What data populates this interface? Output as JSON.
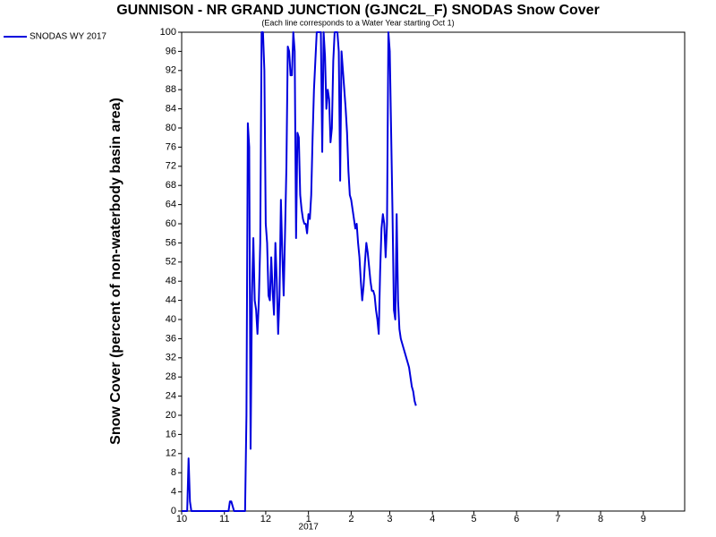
{
  "chart_data": {
    "type": "line",
    "title": "GUNNISON - NR GRAND JUNCTION (GJNC2L_F) SNODAS Snow Cover",
    "subtitle": "(Each line corresponds to a Water Year starting Oct 1)",
    "y_label": "Snow Cover (percent of non-waterbody basin area)",
    "x_sublabel": "2017",
    "xlim": [
      0,
      365
    ],
    "xticks": [
      {
        "value": 0,
        "label": "10"
      },
      {
        "value": 31,
        "label": "11"
      },
      {
        "value": 61,
        "label": "12"
      },
      {
        "value": 92,
        "label": "1"
      },
      {
        "value": 123,
        "label": "2"
      },
      {
        "value": 151,
        "label": "3"
      },
      {
        "value": 182,
        "label": "4"
      },
      {
        "value": 212,
        "label": "5"
      },
      {
        "value": 243,
        "label": "6"
      },
      {
        "value": 273,
        "label": "7"
      },
      {
        "value": 304,
        "label": "8"
      },
      {
        "value": 335,
        "label": "9"
      }
    ],
    "ylim": [
      0,
      100
    ],
    "yticks": [
      0,
      4,
      8,
      12,
      16,
      20,
      24,
      28,
      32,
      36,
      40,
      44,
      48,
      52,
      56,
      60,
      64,
      68,
      72,
      76,
      80,
      84,
      88,
      92,
      96,
      100
    ],
    "grid": false,
    "legend": "top-left",
    "x": [
      0,
      4,
      5,
      6,
      7,
      34,
      35,
      36,
      37,
      38,
      46,
      47,
      48,
      49,
      50,
      51,
      52,
      53,
      54,
      55,
      56,
      57,
      58,
      59,
      60,
      61,
      62,
      63,
      64,
      65,
      66,
      67,
      68,
      69,
      70,
      71,
      72,
      73,
      74,
      75,
      76,
      77,
      78,
      79,
      80,
      81,
      82,
      83,
      84,
      85,
      86,
      87,
      88,
      89,
      90,
      91,
      92,
      93,
      94,
      95,
      96,
      97,
      98,
      99,
      100,
      101,
      102,
      103,
      104,
      105,
      106,
      107,
      108,
      109,
      110,
      111,
      112,
      113,
      114,
      115,
      116,
      117,
      118,
      119,
      120,
      121,
      122,
      123,
      124,
      125,
      126,
      127,
      128,
      129,
      130,
      131,
      132,
      133,
      134,
      135,
      136,
      137,
      138,
      139,
      140,
      141,
      142,
      143,
      144,
      145,
      146,
      147,
      148,
      149,
      150,
      151,
      152,
      153,
      154,
      155,
      156,
      157,
      158,
      159,
      160,
      161,
      162,
      163,
      164,
      165,
      166,
      167,
      168,
      169,
      170
    ],
    "series": [
      {
        "name": "SNODAS WY 2017",
        "color": "#0000dd",
        "values": [
          0,
          0,
          11,
          2,
          0,
          0,
          2,
          2,
          1,
          0,
          0,
          20,
          81,
          76,
          13,
          45,
          57,
          44,
          42,
          37,
          44,
          56,
          100,
          100,
          92,
          60,
          56,
          45,
          44,
          53,
          46,
          41,
          56,
          48,
          37,
          45,
          65,
          54,
          45,
          58,
          72,
          97,
          96,
          91,
          91,
          100,
          96,
          57,
          79,
          78,
          66,
          63,
          61,
          60,
          60,
          58,
          62,
          61,
          66,
          78,
          88,
          94,
          100,
          100,
          100,
          100,
          75,
          100,
          95,
          84,
          88,
          86,
          77,
          80,
          94,
          100,
          100,
          100,
          96,
          69,
          96,
          92,
          88,
          84,
          79,
          71,
          66,
          65,
          63,
          61,
          59,
          60,
          56,
          53,
          48,
          44,
          47,
          52,
          56,
          54,
          51,
          48,
          46,
          46,
          45,
          42,
          40,
          37,
          50,
          59,
          62,
          60,
          53,
          60,
          100,
          96,
          79,
          62,
          42,
          40,
          62,
          44,
          38,
          36,
          35,
          34,
          33,
          32,
          31,
          30,
          28,
          26,
          25,
          23,
          22
        ]
      }
    ]
  }
}
